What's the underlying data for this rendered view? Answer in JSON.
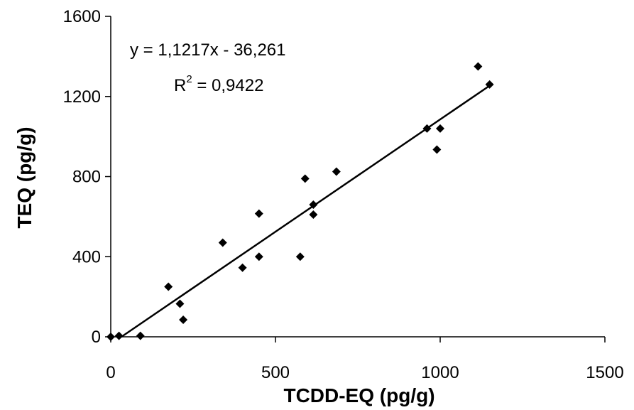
{
  "chart_data": {
    "type": "scatter",
    "title": "",
    "xlabel": "TCDD-EQ (pg/g)",
    "ylabel": "TEQ (pg/g)",
    "xlim": [
      0,
      1500
    ],
    "ylim": [
      0,
      1600
    ],
    "x_ticks": [
      "0",
      "500",
      "1000",
      "1500"
    ],
    "y_ticks": [
      "0",
      "400",
      "800",
      "1200",
      "1600"
    ],
    "x_tick_values": [
      0,
      500,
      1000,
      1500
    ],
    "y_tick_values": [
      0,
      400,
      800,
      1200,
      1600
    ],
    "grid": false,
    "legend": "none",
    "marker": "diamond",
    "color": "#000000",
    "points": [
      {
        "x": 0,
        "y": 0
      },
      {
        "x": 25,
        "y": 5
      },
      {
        "x": 90,
        "y": 5
      },
      {
        "x": 175,
        "y": 250
      },
      {
        "x": 210,
        "y": 165
      },
      {
        "x": 220,
        "y": 85
      },
      {
        "x": 340,
        "y": 470
      },
      {
        "x": 400,
        "y": 345
      },
      {
        "x": 450,
        "y": 615
      },
      {
        "x": 450,
        "y": 400
      },
      {
        "x": 575,
        "y": 400
      },
      {
        "x": 590,
        "y": 790
      },
      {
        "x": 615,
        "y": 660
      },
      {
        "x": 615,
        "y": 610
      },
      {
        "x": 685,
        "y": 825
      },
      {
        "x": 960,
        "y": 1040
      },
      {
        "x": 990,
        "y": 935
      },
      {
        "x": 1000,
        "y": 1040
      },
      {
        "x": 1115,
        "y": 1350
      },
      {
        "x": 1150,
        "y": 1260
      }
    ],
    "trendline": {
      "slope": 1.1217,
      "intercept": -36.261,
      "x_range": [
        32,
        1150
      ]
    },
    "annotations": {
      "equation": "y = 1,1217x - 36,261",
      "r2_prefix": "R",
      "r2_sup": "2",
      "r2_suffix": " = 0,9422"
    }
  }
}
